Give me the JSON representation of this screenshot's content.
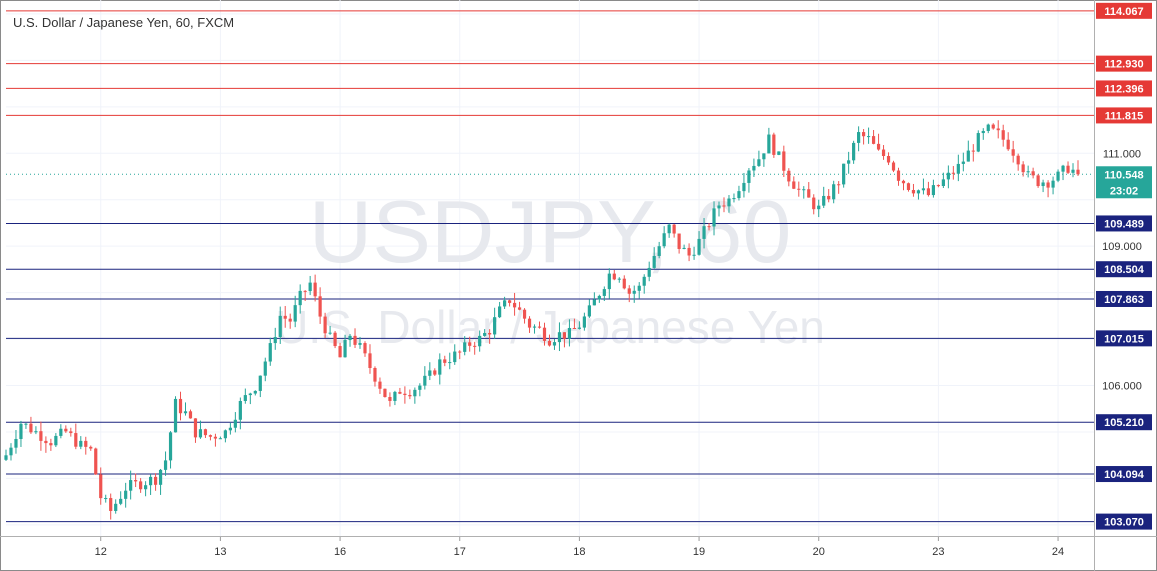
{
  "header": {
    "title": "U.S. Dollar / Japanese Yen, 60, FXCM"
  },
  "watermark": {
    "symbol": "USDJPY, 60",
    "name": "U.S. Dollar / Japanese Yen"
  },
  "countdown": "23:02",
  "colors": {
    "up": "#26a69a",
    "down": "#ef5350",
    "resistance": "#e53935",
    "support": "#1a237e",
    "current": "#26a69a"
  },
  "chart_data": {
    "type": "candlestick",
    "ylim": [
      102.76,
      114.3
    ],
    "y_ticks": [
      {
        "value": 106.0,
        "label": "106.000"
      },
      {
        "value": 109.0,
        "label": "109.000"
      },
      {
        "value": 111.0,
        "label": "111.000"
      }
    ],
    "x_ticks": [
      {
        "index": 19,
        "label": "12"
      },
      {
        "index": 43,
        "label": "13"
      },
      {
        "index": 67,
        "label": "16"
      },
      {
        "index": 91,
        "label": "17"
      },
      {
        "index": 115,
        "label": "18"
      },
      {
        "index": 139,
        "label": "19"
      },
      {
        "index": 163,
        "label": "20"
      },
      {
        "index": 187,
        "label": "23"
      },
      {
        "index": 211,
        "label": "24"
      }
    ],
    "resistance_levels": [
      {
        "value": 114.067,
        "label": "114.067"
      },
      {
        "value": 112.93,
        "label": "112.930"
      },
      {
        "value": 112.396,
        "label": "112.396"
      },
      {
        "value": 111.815,
        "label": "111.815"
      }
    ],
    "support_levels": [
      {
        "value": 109.489,
        "label": "109.489"
      },
      {
        "value": 108.504,
        "label": "108.504"
      },
      {
        "value": 107.863,
        "label": "107.863"
      },
      {
        "value": 107.015,
        "label": "107.015"
      },
      {
        "value": 105.21,
        "label": "105.210"
      },
      {
        "value": 104.094,
        "label": "104.094"
      },
      {
        "value": 103.07,
        "label": "103.070"
      }
    ],
    "current_price": {
      "value": 110.548,
      "label": "110.548"
    },
    "close_path": [
      [
        0,
        104.5
      ],
      [
        3,
        105.2
      ],
      [
        6,
        105.0
      ],
      [
        9,
        104.8
      ],
      [
        12,
        105.0
      ],
      [
        15,
        104.7
      ],
      [
        17,
        104.6
      ],
      [
        19,
        103.6
      ],
      [
        21,
        103.3
      ],
      [
        24,
        103.8
      ],
      [
        27,
        103.9
      ],
      [
        30,
        104.0
      ],
      [
        32,
        104.4
      ],
      [
        34,
        105.6
      ],
      [
        36,
        105.4
      ],
      [
        38,
        105.0
      ],
      [
        41,
        104.9
      ],
      [
        44,
        105.0
      ],
      [
        47,
        105.6
      ],
      [
        50,
        106.0
      ],
      [
        53,
        106.8
      ],
      [
        55,
        107.5
      ],
      [
        57,
        107.4
      ],
      [
        59,
        107.9
      ],
      [
        61,
        108.2
      ],
      [
        63,
        107.5
      ],
      [
        65,
        107.0
      ],
      [
        67,
        106.6
      ],
      [
        69,
        107.1
      ],
      [
        71,
        106.8
      ],
      [
        73,
        106.4
      ],
      [
        75,
        106.0
      ],
      [
        77,
        105.6
      ],
      [
        79,
        105.9
      ],
      [
        81,
        105.9
      ],
      [
        83,
        106.0
      ],
      [
        85,
        106.2
      ],
      [
        87,
        106.5
      ],
      [
        89,
        106.6
      ],
      [
        91,
        106.7
      ],
      [
        93,
        106.9
      ],
      [
        95,
        107.0
      ],
      [
        97,
        107.2
      ],
      [
        99,
        107.6
      ],
      [
        101,
        107.85
      ],
      [
        103,
        107.6
      ],
      [
        105,
        107.3
      ],
      [
        107,
        107.2
      ],
      [
        109,
        107.0
      ],
      [
        111,
        107.1
      ],
      [
        113,
        107.1
      ],
      [
        115,
        107.3
      ],
      [
        117,
        107.6
      ],
      [
        119,
        108.0
      ],
      [
        121,
        108.4
      ],
      [
        123,
        108.4
      ],
      [
        125,
        108.0
      ],
      [
        127,
        108.1
      ],
      [
        129,
        108.6
      ],
      [
        131,
        109.0
      ],
      [
        133,
        109.4
      ],
      [
        135,
        109.0
      ],
      [
        137,
        108.8
      ],
      [
        139,
        109.1
      ],
      [
        141,
        109.5
      ],
      [
        143,
        109.9
      ],
      [
        145,
        110.0
      ],
      [
        147,
        110.3
      ],
      [
        149,
        110.7
      ],
      [
        151,
        110.9
      ],
      [
        153,
        111.3
      ],
      [
        155,
        110.9
      ],
      [
        157,
        110.5
      ],
      [
        159,
        110.2
      ],
      [
        161,
        110.0
      ],
      [
        163,
        109.8
      ],
      [
        165,
        110.1
      ],
      [
        167,
        110.4
      ],
      [
        169,
        110.9
      ],
      [
        171,
        111.4
      ],
      [
        173,
        111.3
      ],
      [
        175,
        111.0
      ],
      [
        177,
        110.9
      ],
      [
        179,
        110.5
      ],
      [
        181,
        110.3
      ],
      [
        183,
        110.2
      ],
      [
        185,
        110.1
      ],
      [
        187,
        110.3
      ],
      [
        189,
        110.5
      ],
      [
        191,
        110.7
      ],
      [
        193,
        111.0
      ],
      [
        195,
        111.3
      ],
      [
        197,
        111.5
      ],
      [
        199,
        111.4
      ],
      [
        201,
        111.2
      ],
      [
        203,
        110.9
      ],
      [
        205,
        110.5
      ],
      [
        207,
        110.4
      ],
      [
        209,
        110.4
      ],
      [
        211,
        110.5
      ],
      [
        213,
        110.7
      ],
      [
        215,
        110.548
      ]
    ]
  }
}
